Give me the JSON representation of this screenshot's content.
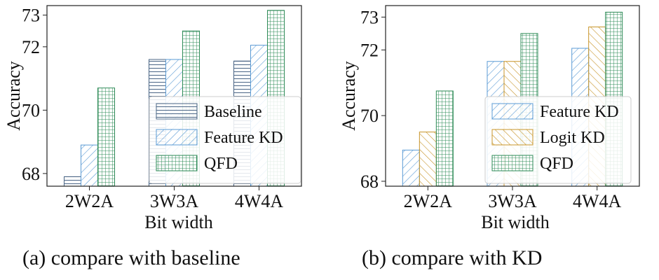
{
  "chart_data": [
    {
      "type": "bar",
      "caption": "(a) compare with baseline",
      "xlabel": "Bit width",
      "ylabel": "Accuracy",
      "categories": [
        "2W2A",
        "3W3A",
        "4W4A"
      ],
      "ylim": [
        67.6,
        73.3
      ],
      "yticks": [
        68,
        70,
        72,
        73
      ],
      "series": [
        {
          "name": "Baseline",
          "values": [
            67.9,
            71.6,
            71.55
          ],
          "color": "#4a6585",
          "pattern": "horizontal"
        },
        {
          "name": "Feature KD",
          "values": [
            68.9,
            71.6,
            72.05
          ],
          "color": "#5b9bd5",
          "pattern": "diagonal"
        },
        {
          "name": "QFD",
          "values": [
            70.7,
            72.5,
            73.15
          ],
          "color": "#2e8b57",
          "pattern": "grid"
        }
      ],
      "legend": "lower-right"
    },
    {
      "type": "bar",
      "caption": "(b) compare with KD",
      "xlabel": "Bit width",
      "ylabel": "Accuracy",
      "categories": [
        "2W2A",
        "3W3A",
        "4W4A"
      ],
      "ylim": [
        67.85,
        73.35
      ],
      "yticks": [
        68,
        70,
        72,
        73
      ],
      "series": [
        {
          "name": "Feature KD",
          "values": [
            68.95,
            71.65,
            72.05
          ],
          "color": "#5b9bd5",
          "pattern": "diagonal"
        },
        {
          "name": "Logit KD",
          "values": [
            69.5,
            71.65,
            72.7
          ],
          "color": "#c8952a",
          "pattern": "antidiagonal"
        },
        {
          "name": "QFD",
          "values": [
            70.75,
            72.5,
            73.15
          ],
          "color": "#2e8b57",
          "pattern": "grid"
        }
      ],
      "legend": "lower-right"
    }
  ]
}
